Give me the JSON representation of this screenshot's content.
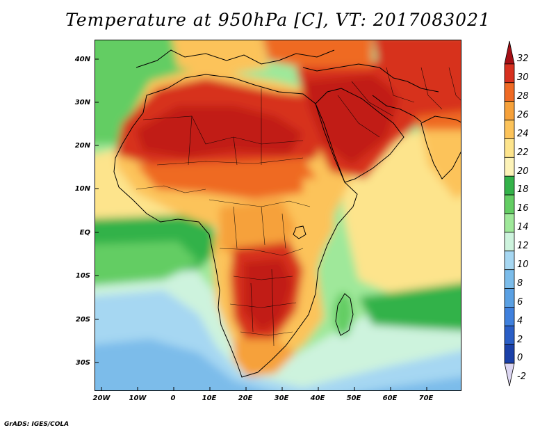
{
  "title": "Temperature at 950hPa [C], VT: 2017083021",
  "credit": "GrADS: IGES/COLA",
  "lat_labels": [
    "40N",
    "30N",
    "20N",
    "10N",
    "EQ",
    "10S",
    "20S",
    "30S"
  ],
  "lon_labels": [
    "20W",
    "10W",
    "0",
    "10E",
    "20E",
    "30E",
    "40E",
    "50E",
    "60E",
    "70E"
  ],
  "colorbar": {
    "labels": [
      "32",
      "30",
      "28",
      "26",
      "24",
      "22",
      "20",
      "18",
      "16",
      "14",
      "12",
      "10",
      "8",
      "6",
      "4",
      "2",
      "0",
      "-2"
    ],
    "colors": [
      "#a50f15",
      "#d7301f",
      "#ef6a24",
      "#f6a13a",
      "#fcc35a",
      "#fde48c",
      "#fdf3b8",
      "#33b249",
      "#63cd63",
      "#9fe89a",
      "#cdf3dd",
      "#a6d7f2",
      "#7bbcea",
      "#5aa0e3",
      "#3f80dd",
      "#2a5ec6",
      "#1a40a8",
      "#141a78"
    ]
  },
  "map": {
    "region": "Africa / Middle East",
    "lat_range": [
      -36,
      45
    ],
    "lon_range": [
      -22,
      80
    ],
    "colors": {
      "hot": "#d7301f",
      "very_hot": "#c11d12",
      "warm": "#ef6a24",
      "mild": "#fcc35a",
      "pale": "#fde48c",
      "green": "#33b249",
      "lightgreen": "#63cd63",
      "cyan": "#cdf3dd",
      "lightblue": "#a6d7f2",
      "blue": "#7bbcea"
    }
  }
}
